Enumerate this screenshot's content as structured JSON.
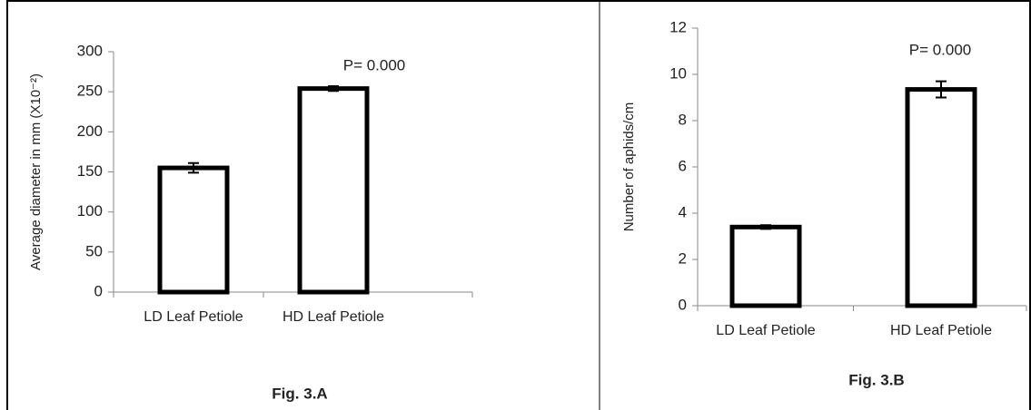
{
  "chart_data": [
    {
      "type": "bar",
      "y_label": "Average diameter in mm (X10⁻²)",
      "categories": [
        "LD Leaf Petiole",
        "HD Leaf Petiole"
      ],
      "values": [
        155,
        254
      ],
      "errors": [
        6,
        3
      ],
      "color": "#ffffff",
      "annotation": "P= 0.000",
      "caption": "Fig. 3.A",
      "ylim": [
        0,
        300
      ],
      "yticks": [
        0,
        50,
        100,
        150,
        200,
        250,
        300
      ]
    },
    {
      "type": "bar",
      "y_label": "Number of aphids/cm",
      "categories": [
        "LD Leaf Petiole",
        "HD Leaf Petiole"
      ],
      "values": [
        3.4,
        9.35
      ],
      "errors": [
        0.08,
        0.35
      ],
      "color": "#ffffff",
      "annotation": "P= 0.000",
      "caption": "Fig. 3.B",
      "ylim": [
        0,
        12
      ],
      "yticks": [
        0,
        2,
        4,
        6,
        8,
        10,
        12
      ]
    }
  ]
}
